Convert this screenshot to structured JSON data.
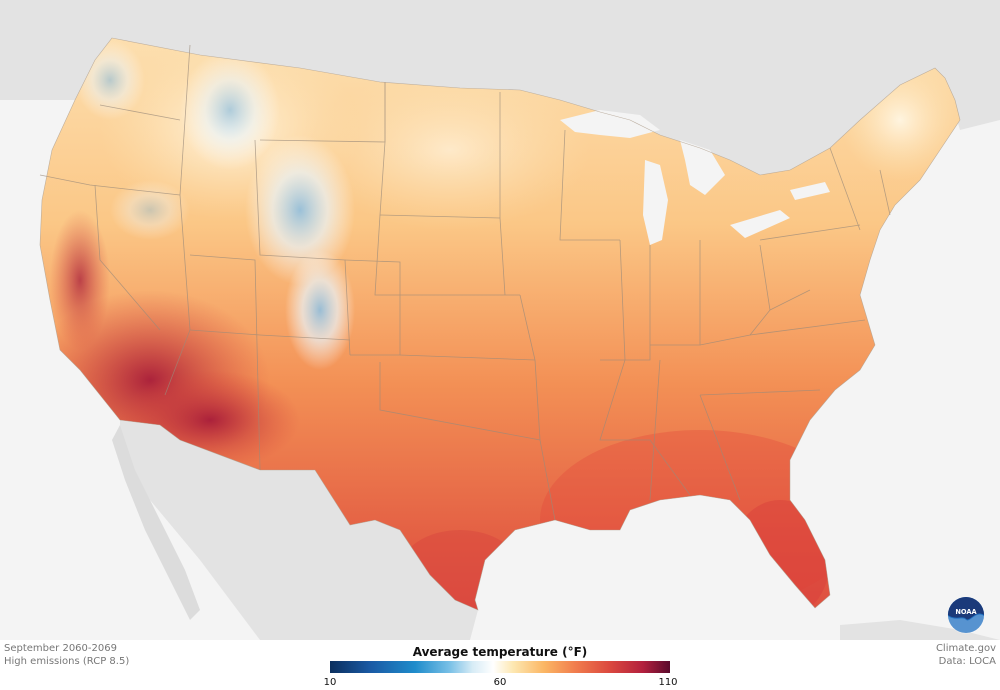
{
  "footer": {
    "left_line1": "September 2060-2069",
    "left_line2": "High emissions (RCP 8.5)",
    "right_line1": "Climate.gov",
    "right_line2": "Data: LOCA"
  },
  "legend": {
    "title": "Average temperature (°F)",
    "ticks": [
      "10",
      "60",
      "110"
    ],
    "gradient_stops": [
      "#0b2f5e",
      "#1f8ccb",
      "#ffffff",
      "#fbb664",
      "#dc4a3f",
      "#5a0a2c"
    ]
  },
  "logo": {
    "text": "NOAA"
  },
  "colors": {
    "background": "#f4f4f4",
    "land_outside": "#e3e3e3",
    "water": "#f4f4f4"
  }
}
